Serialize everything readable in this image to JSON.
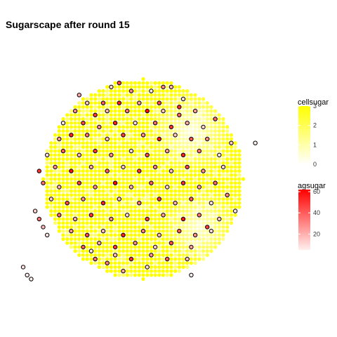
{
  "chart_data": {
    "type": "scatter",
    "title": "Sugarscape after round 15",
    "grid_radius": 25,
    "x_range": [
      -25,
      25
    ],
    "y_range": [
      -25,
      25
    ],
    "cell_layer": {
      "legend_title": "cellsugar",
      "scale_min": 0,
      "scale_max": 3,
      "ticks": [
        0,
        1,
        2,
        3
      ],
      "color_low": "#ffffff",
      "color_high": "#ffff00",
      "note": "one point per grid cell inside the radius; value ~3 (bright yellow) across most of the disc, lower (paler) in the northeast and southeast"
    },
    "agent_layer": {
      "legend_title": "agsugar",
      "scale_min": 5,
      "scale_max": 62,
      "ticks": [
        20,
        40,
        60
      ],
      "color_low": "#fff0ee",
      "color_high": "#ff0000",
      "outline_color": "#000000",
      "agents": [
        [
          -8,
          23,
          12
        ],
        [
          -3,
          22,
          30
        ],
        [
          2,
          22,
          8
        ],
        [
          7,
          23,
          20
        ],
        [
          -14,
          19,
          15
        ],
        [
          -10,
          19,
          40
        ],
        [
          -6,
          19,
          55
        ],
        [
          -1,
          19,
          25
        ],
        [
          4,
          19,
          45
        ],
        [
          10,
          20,
          10
        ],
        [
          -17,
          17,
          30
        ],
        [
          -12,
          16,
          50
        ],
        [
          -9,
          17,
          20
        ],
        [
          -4,
          17,
          35
        ],
        [
          1,
          17,
          60
        ],
        [
          5,
          17,
          15
        ],
        [
          9,
          16,
          40
        ],
        [
          13,
          17,
          25
        ],
        [
          -20,
          14,
          8
        ],
        [
          -15,
          14,
          45
        ],
        [
          -11,
          13,
          30
        ],
        [
          -7,
          14,
          55
        ],
        [
          -2,
          14,
          10
        ],
        [
          3,
          14,
          38
        ],
        [
          7,
          13,
          50
        ],
        [
          11,
          14,
          22
        ],
        [
          15,
          13,
          12
        ],
        [
          -21,
          10,
          25
        ],
        [
          -18,
          11,
          55
        ],
        [
          -14,
          11,
          35
        ],
        [
          -9,
          10,
          18
        ],
        [
          -5,
          11,
          48
        ],
        [
          0,
          11,
          28
        ],
        [
          4,
          10,
          58
        ],
        [
          8,
          11,
          15
        ],
        [
          12,
          10,
          42
        ],
        [
          16,
          10,
          30
        ],
        [
          -24,
          6,
          10
        ],
        [
          -20,
          7,
          40
        ],
        [
          -16,
          6,
          20
        ],
        [
          -12,
          7,
          50
        ],
        [
          -8,
          6,
          30
        ],
        [
          -3,
          7,
          12
        ],
        [
          1,
          6,
          45
        ],
        [
          6,
          7,
          25
        ],
        [
          10,
          6,
          55
        ],
        [
          14,
          7,
          35
        ],
        [
          19,
          6,
          8
        ],
        [
          -22,
          3,
          30
        ],
        [
          -18,
          2,
          58
        ],
        [
          -13,
          3,
          22
        ],
        [
          -9,
          2,
          40
        ],
        [
          -5,
          3,
          15
        ],
        [
          -1,
          2,
          50
        ],
        [
          3,
          3,
          32
        ],
        [
          7,
          2,
          18
        ],
        [
          11,
          3,
          45
        ],
        [
          15,
          2,
          28
        ],
        [
          20,
          3,
          12
        ],
        [
          -25,
          -1,
          35
        ],
        [
          -21,
          -2,
          20
        ],
        [
          -16,
          -1,
          48
        ],
        [
          -12,
          -2,
          30
        ],
        [
          -7,
          -1,
          60
        ],
        [
          -3,
          -2,
          22
        ],
        [
          2,
          -1,
          40
        ],
        [
          6,
          -2,
          12
        ],
        [
          10,
          -1,
          52
        ],
        [
          14,
          -2,
          25
        ],
        [
          18,
          -1,
          38
        ],
        [
          -23,
          -5,
          15
        ],
        [
          -19,
          -6,
          45
        ],
        [
          -15,
          -5,
          28
        ],
        [
          -10,
          -6,
          55
        ],
        [
          -6,
          -5,
          18
        ],
        [
          -1,
          -6,
          35
        ],
        [
          4,
          -5,
          50
        ],
        [
          8,
          -6,
          20
        ],
        [
          12,
          -5,
          42
        ],
        [
          17,
          -6,
          10
        ],
        [
          -21,
          -9,
          38
        ],
        [
          -17,
          -10,
          22
        ],
        [
          -13,
          -9,
          50
        ],
        [
          -8,
          -10,
          30
        ],
        [
          -4,
          -9,
          12
        ],
        [
          1,
          -10,
          48
        ],
        [
          5,
          -9,
          25
        ],
        [
          10,
          -10,
          58
        ],
        [
          14,
          -9,
          35
        ],
        [
          19,
          -10,
          15
        ],
        [
          -18,
          -13,
          28
        ],
        [
          -14,
          -14,
          45
        ],
        [
          -10,
          -13,
          18
        ],
        [
          -5,
          -14,
          55
        ],
        [
          0,
          -13,
          32
        ],
        [
          4,
          -14,
          20
        ],
        [
          9,
          -13,
          42
        ],
        [
          13,
          -14,
          28
        ],
        [
          17,
          -13,
          12
        ],
        [
          -15,
          -17,
          40
        ],
        [
          -11,
          -16,
          22
        ],
        [
          -7,
          -17,
          50
        ],
        [
          -2,
          -16,
          30
        ],
        [
          3,
          -17,
          15
        ],
        [
          7,
          -16,
          45
        ],
        [
          12,
          -17,
          25
        ],
        [
          -12,
          -20,
          35
        ],
        [
          -7,
          -19,
          18
        ],
        [
          -3,
          -20,
          52
        ],
        [
          2,
          -19,
          28
        ],
        [
          6,
          -20,
          40
        ],
        [
          -5,
          -23,
          22
        ],
        [
          1,
          -22,
          10
        ],
        [
          -26,
          -10,
          35
        ],
        [
          -25,
          -12,
          18
        ],
        [
          -24,
          -14,
          8
        ],
        [
          -27,
          -8,
          12
        ],
        [
          5,
          23,
          30
        ],
        [
          -6,
          24,
          45
        ],
        [
          9,
          18,
          52
        ],
        [
          -16,
          21,
          22
        ],
        [
          18,
          15,
          38
        ],
        [
          22,
          9,
          15
        ],
        [
          21,
          -4,
          30
        ],
        [
          23,
          -8,
          8
        ],
        [
          -26,
          2,
          50
        ],
        [
          16,
          -12,
          48
        ],
        [
          11,
          -20,
          18
        ],
        [
          -9,
          -21,
          32
        ],
        [
          -13,
          -18,
          8
        ],
        [
          28,
          9,
          5
        ],
        [
          -30,
          -22,
          8
        ],
        [
          -29,
          -24,
          5
        ],
        [
          -28,
          -25,
          5
        ],
        [
          12,
          -24,
          5
        ]
      ]
    }
  }
}
